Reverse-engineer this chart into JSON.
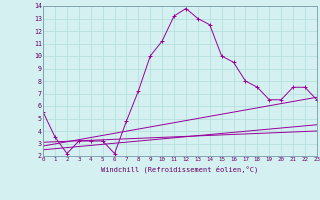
{
  "xlabel": "Windchill (Refroidissement éolien,°C)",
  "bg_color": "#d4f0f0",
  "line_color": "#990099",
  "grid_color": "#b0ddd8",
  "xlim": [
    0,
    23
  ],
  "ylim": [
    2,
    14
  ],
  "xticks": [
    0,
    1,
    2,
    3,
    4,
    5,
    6,
    7,
    8,
    9,
    10,
    11,
    12,
    13,
    14,
    15,
    16,
    17,
    18,
    19,
    20,
    21,
    22,
    23
  ],
  "yticks": [
    2,
    3,
    4,
    5,
    6,
    7,
    8,
    9,
    10,
    11,
    12,
    13,
    14
  ],
  "series": [
    {
      "x": [
        0,
        1,
        2,
        3,
        4,
        5,
        6,
        7,
        8,
        9,
        10,
        11,
        12,
        13,
        14,
        15,
        16,
        17,
        18,
        19,
        20,
        21,
        22,
        23
      ],
      "y": [
        5.5,
        3.5,
        2.2,
        3.2,
        3.2,
        3.2,
        2.2,
        4.8,
        7.2,
        10.0,
        11.2,
        13.2,
        13.8,
        13.0,
        12.5,
        10.0,
        9.5,
        8.0,
        7.5,
        6.5,
        6.5,
        7.5,
        7.5,
        6.5
      ],
      "marker": true
    },
    {
      "x": [
        0,
        23
      ],
      "y": [
        2.5,
        4.5
      ],
      "marker": false
    },
    {
      "x": [
        0,
        23
      ],
      "y": [
        2.8,
        6.7
      ],
      "marker": false
    },
    {
      "x": [
        0,
        23
      ],
      "y": [
        3.1,
        4.0
      ],
      "marker": false
    }
  ]
}
